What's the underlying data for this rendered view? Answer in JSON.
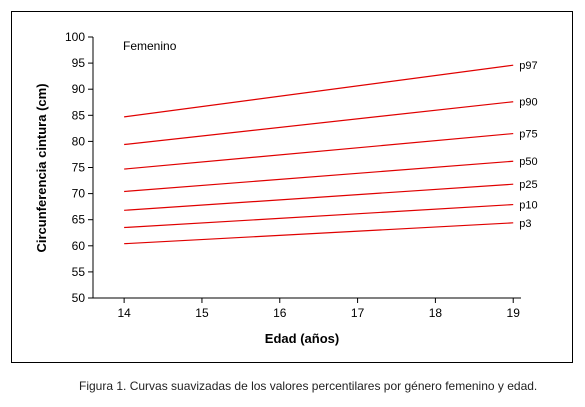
{
  "chart_data": {
    "type": "line",
    "title": "Femenino",
    "xlabel": "Edad (años)",
    "ylabel": "Circunferencia cintura (cm)",
    "xlim": [
      13.6,
      19.1
    ],
    "ylim": [
      50,
      100
    ],
    "x_ticks": [
      14,
      15,
      16,
      17,
      18,
      19
    ],
    "y_ticks": [
      50,
      55,
      60,
      65,
      70,
      75,
      80,
      85,
      90,
      95,
      100
    ],
    "grid": false,
    "legend": "none",
    "line_color": "#e00000",
    "x": [
      14,
      19
    ],
    "series": [
      {
        "name": "p97",
        "values": [
          84.7,
          94.6
        ]
      },
      {
        "name": "p90",
        "values": [
          79.4,
          87.6
        ]
      },
      {
        "name": "p75",
        "values": [
          74.7,
          81.5
        ]
      },
      {
        "name": "p50",
        "values": [
          70.4,
          76.2
        ]
      },
      {
        "name": "p25",
        "values": [
          66.8,
          71.8
        ]
      },
      {
        "name": "p10",
        "values": [
          63.5,
          67.9
        ]
      },
      {
        "name": "p3",
        "values": [
          60.4,
          64.4
        ]
      }
    ]
  },
  "caption": "Figura 1. Curvas suavizadas de los valores percentilares por género femenino y edad."
}
